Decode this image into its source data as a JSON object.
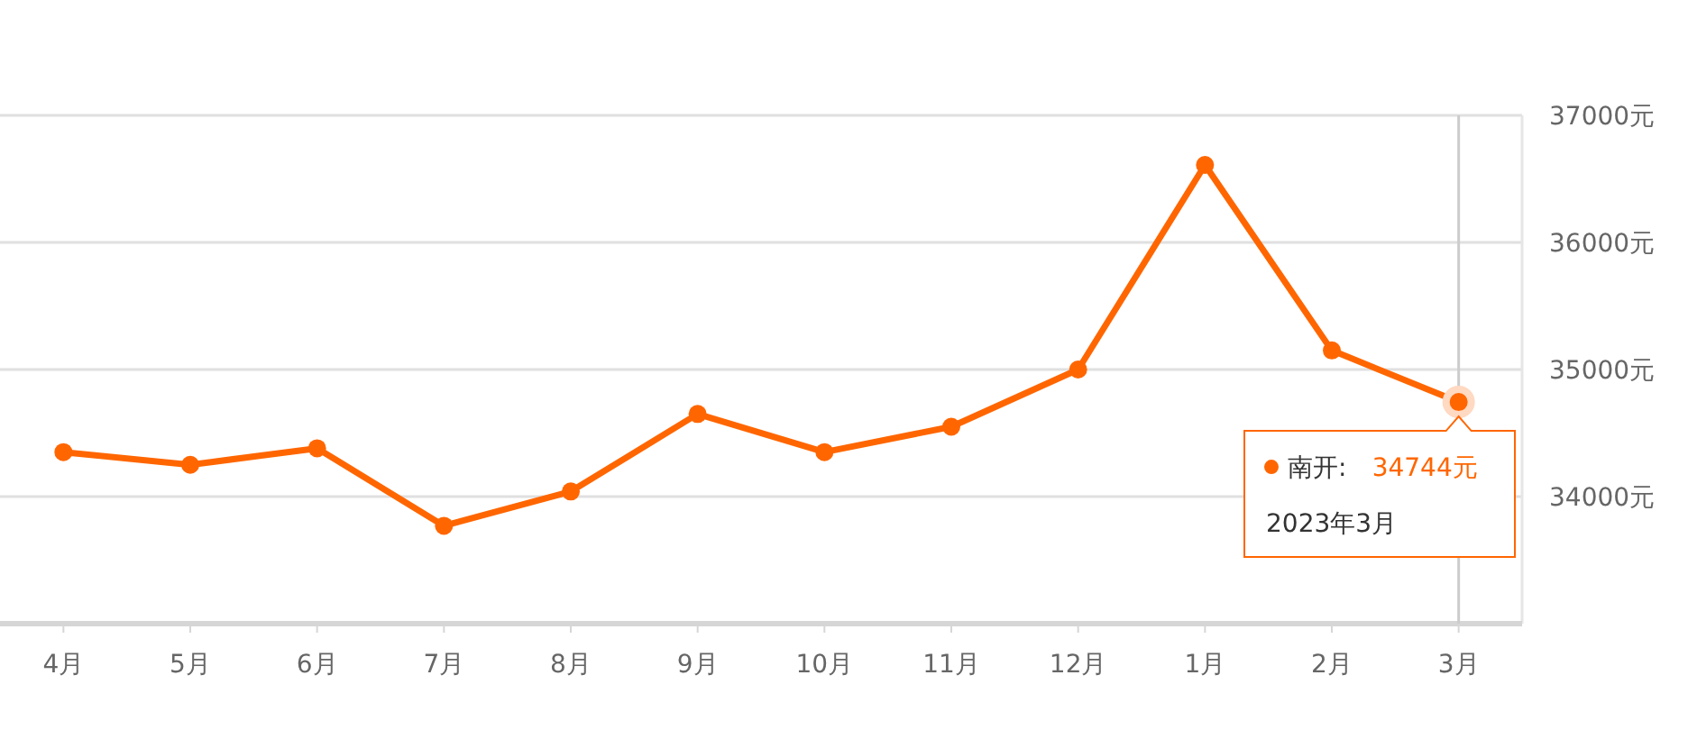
{
  "chart_data": {
    "type": "line",
    "categories": [
      "4月",
      "5月",
      "6月",
      "7月",
      "8月",
      "9月",
      "10月",
      "11月",
      "12月",
      "1月",
      "2月",
      "3月"
    ],
    "series": [
      {
        "name": "南开:",
        "color": "#ff6600",
        "values": [
          34350,
          34250,
          34380,
          33770,
          34040,
          34650,
          34350,
          34550,
          35000,
          36610,
          35150,
          34744
        ],
        "value_labels": [
          null,
          null,
          null,
          null,
          null,
          null,
          null,
          null,
          null,
          null,
          null,
          "34744元"
        ]
      }
    ],
    "ylim": [
      33000,
      37000
    ],
    "yticks": [
      {
        "value": 34000,
        "label": "34000元"
      },
      {
        "value": 35000,
        "label": "35000元"
      },
      {
        "value": 36000,
        "label": "36000元"
      },
      {
        "value": 37000,
        "label": "37000元"
      }
    ],
    "grid": "y",
    "marker": "circle",
    "line_style": "solid",
    "legend": "right",
    "ref_lines": [
      {
        "axis": "x",
        "value": "3月",
        "color": "#cccccc"
      }
    ],
    "annotations": [
      "2023年3月"
    ]
  }
}
